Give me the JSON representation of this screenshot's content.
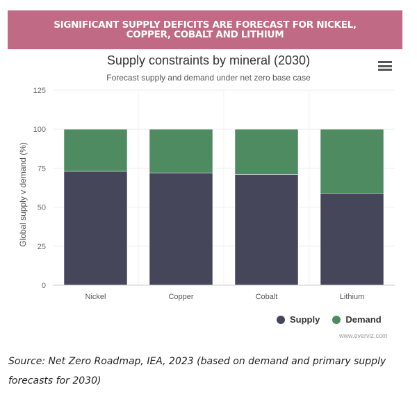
{
  "banner": "SIGNIFICANT SUPPLY DEFICITS ARE FORECAST FOR NICKEL, COPPER, COBALT AND LITHIUM",
  "chart_data": {
    "type": "bar",
    "stacked": true,
    "title": "Supply constraints by mineral (2030)",
    "subtitle": "Forecast supply and demand under net zero base case",
    "categories": [
      "Nickel",
      "Copper",
      "Cobalt",
      "Lithium"
    ],
    "series": [
      {
        "name": "Supply",
        "color": "#46465a",
        "values": [
          73,
          72,
          71,
          59
        ]
      },
      {
        "name": "Demand",
        "color": "#4e8b60",
        "values": [
          27,
          28,
          29,
          41
        ]
      }
    ],
    "xlabel": "",
    "ylabel": "Global supply v demand (%)",
    "ylim": [
      0,
      125
    ],
    "yticks": [
      0,
      25,
      50,
      75,
      100,
      125
    ],
    "legend": "bottom-right",
    "grid": true
  },
  "credits": "www.everviz.com",
  "source": "Source: Net Zero Roadmap, IEA, 2023 (based on demand and primary supply forecasts for 2030)"
}
